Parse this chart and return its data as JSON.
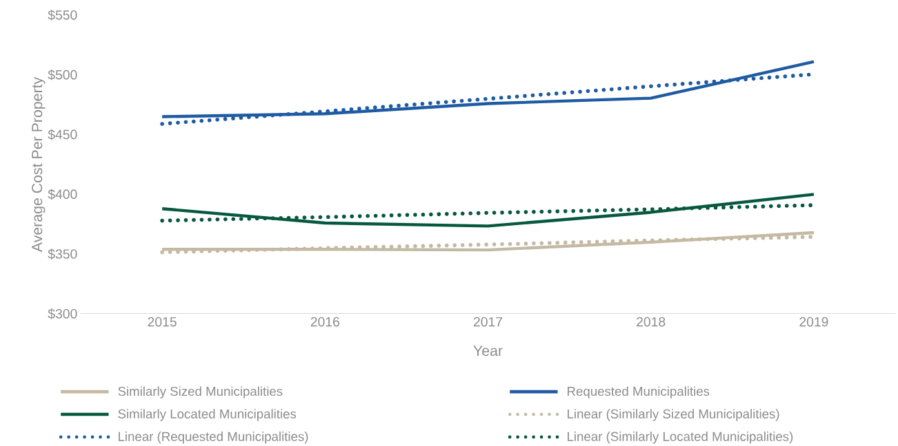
{
  "chart_data": {
    "type": "line",
    "xlabel": "Year",
    "ylabel": "Average Cost Per Property",
    "x": [
      2015,
      2016,
      2017,
      2018,
      2019
    ],
    "xlim": [
      2014.5,
      2019.5
    ],
    "xticks": [
      2015,
      2016,
      2017,
      2018,
      2019
    ],
    "ylim": [
      300,
      550
    ],
    "yticks": [
      {
        "value": 300,
        "label": "$300"
      },
      {
        "value": 350,
        "label": "$350"
      },
      {
        "value": 400,
        "label": "$400"
      },
      {
        "value": 450,
        "label": "$450"
      },
      {
        "value": 500,
        "label": "$500"
      },
      {
        "value": 550,
        "label": "$550"
      }
    ],
    "grid": false,
    "legend": "bottom",
    "marker": "none",
    "line_style": "solid",
    "series": [
      {
        "name": "Similarly Sized Municipalities",
        "color": "#c4b9a3",
        "values": [
          354,
          354,
          353.5,
          360,
          368
        ]
      },
      {
        "name": "Requested Municipalities",
        "color": "#1f5ba3",
        "values": [
          465,
          467.5,
          476,
          480.5,
          511
        ]
      },
      {
        "name": "Similarly Located Municipalities",
        "color": "#075840",
        "values": [
          388,
          376,
          373.5,
          385,
          400
        ]
      },
      {
        "name": "Linear (Similarly Sized Municipalities)",
        "color": "#c4b9a3",
        "line_style": "dotted",
        "values": [
          351.5,
          355,
          358,
          361.5,
          364.5
        ]
      },
      {
        "name": "Linear (Requested Municipalities)",
        "color": "#1f5ba3",
        "line_style": "dotted",
        "values": [
          459,
          469.5,
          480,
          490.5,
          500.5
        ]
      },
      {
        "name": "Linear (Similarly Located Municipalities)",
        "color": "#075840",
        "line_style": "dotted",
        "values": [
          378,
          381,
          384.5,
          387.5,
          391
        ]
      }
    ]
  }
}
